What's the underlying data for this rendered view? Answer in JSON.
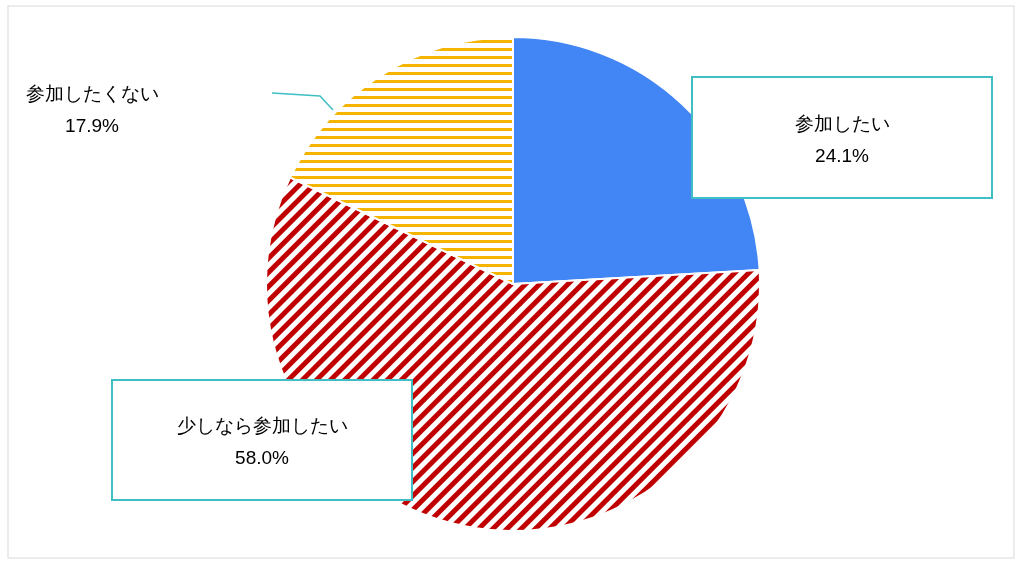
{
  "chart_data": {
    "type": "pie",
    "categories": [
      "参加したい",
      "少しなら参加したい",
      "参加したくない"
    ],
    "values": [
      24.1,
      58.0,
      17.9
    ],
    "colors": [
      "#4285f4",
      "#c00000",
      "#f4b400"
    ],
    "value_labels": [
      "24.1%",
      "58.0%",
      "17.9%"
    ]
  }
}
